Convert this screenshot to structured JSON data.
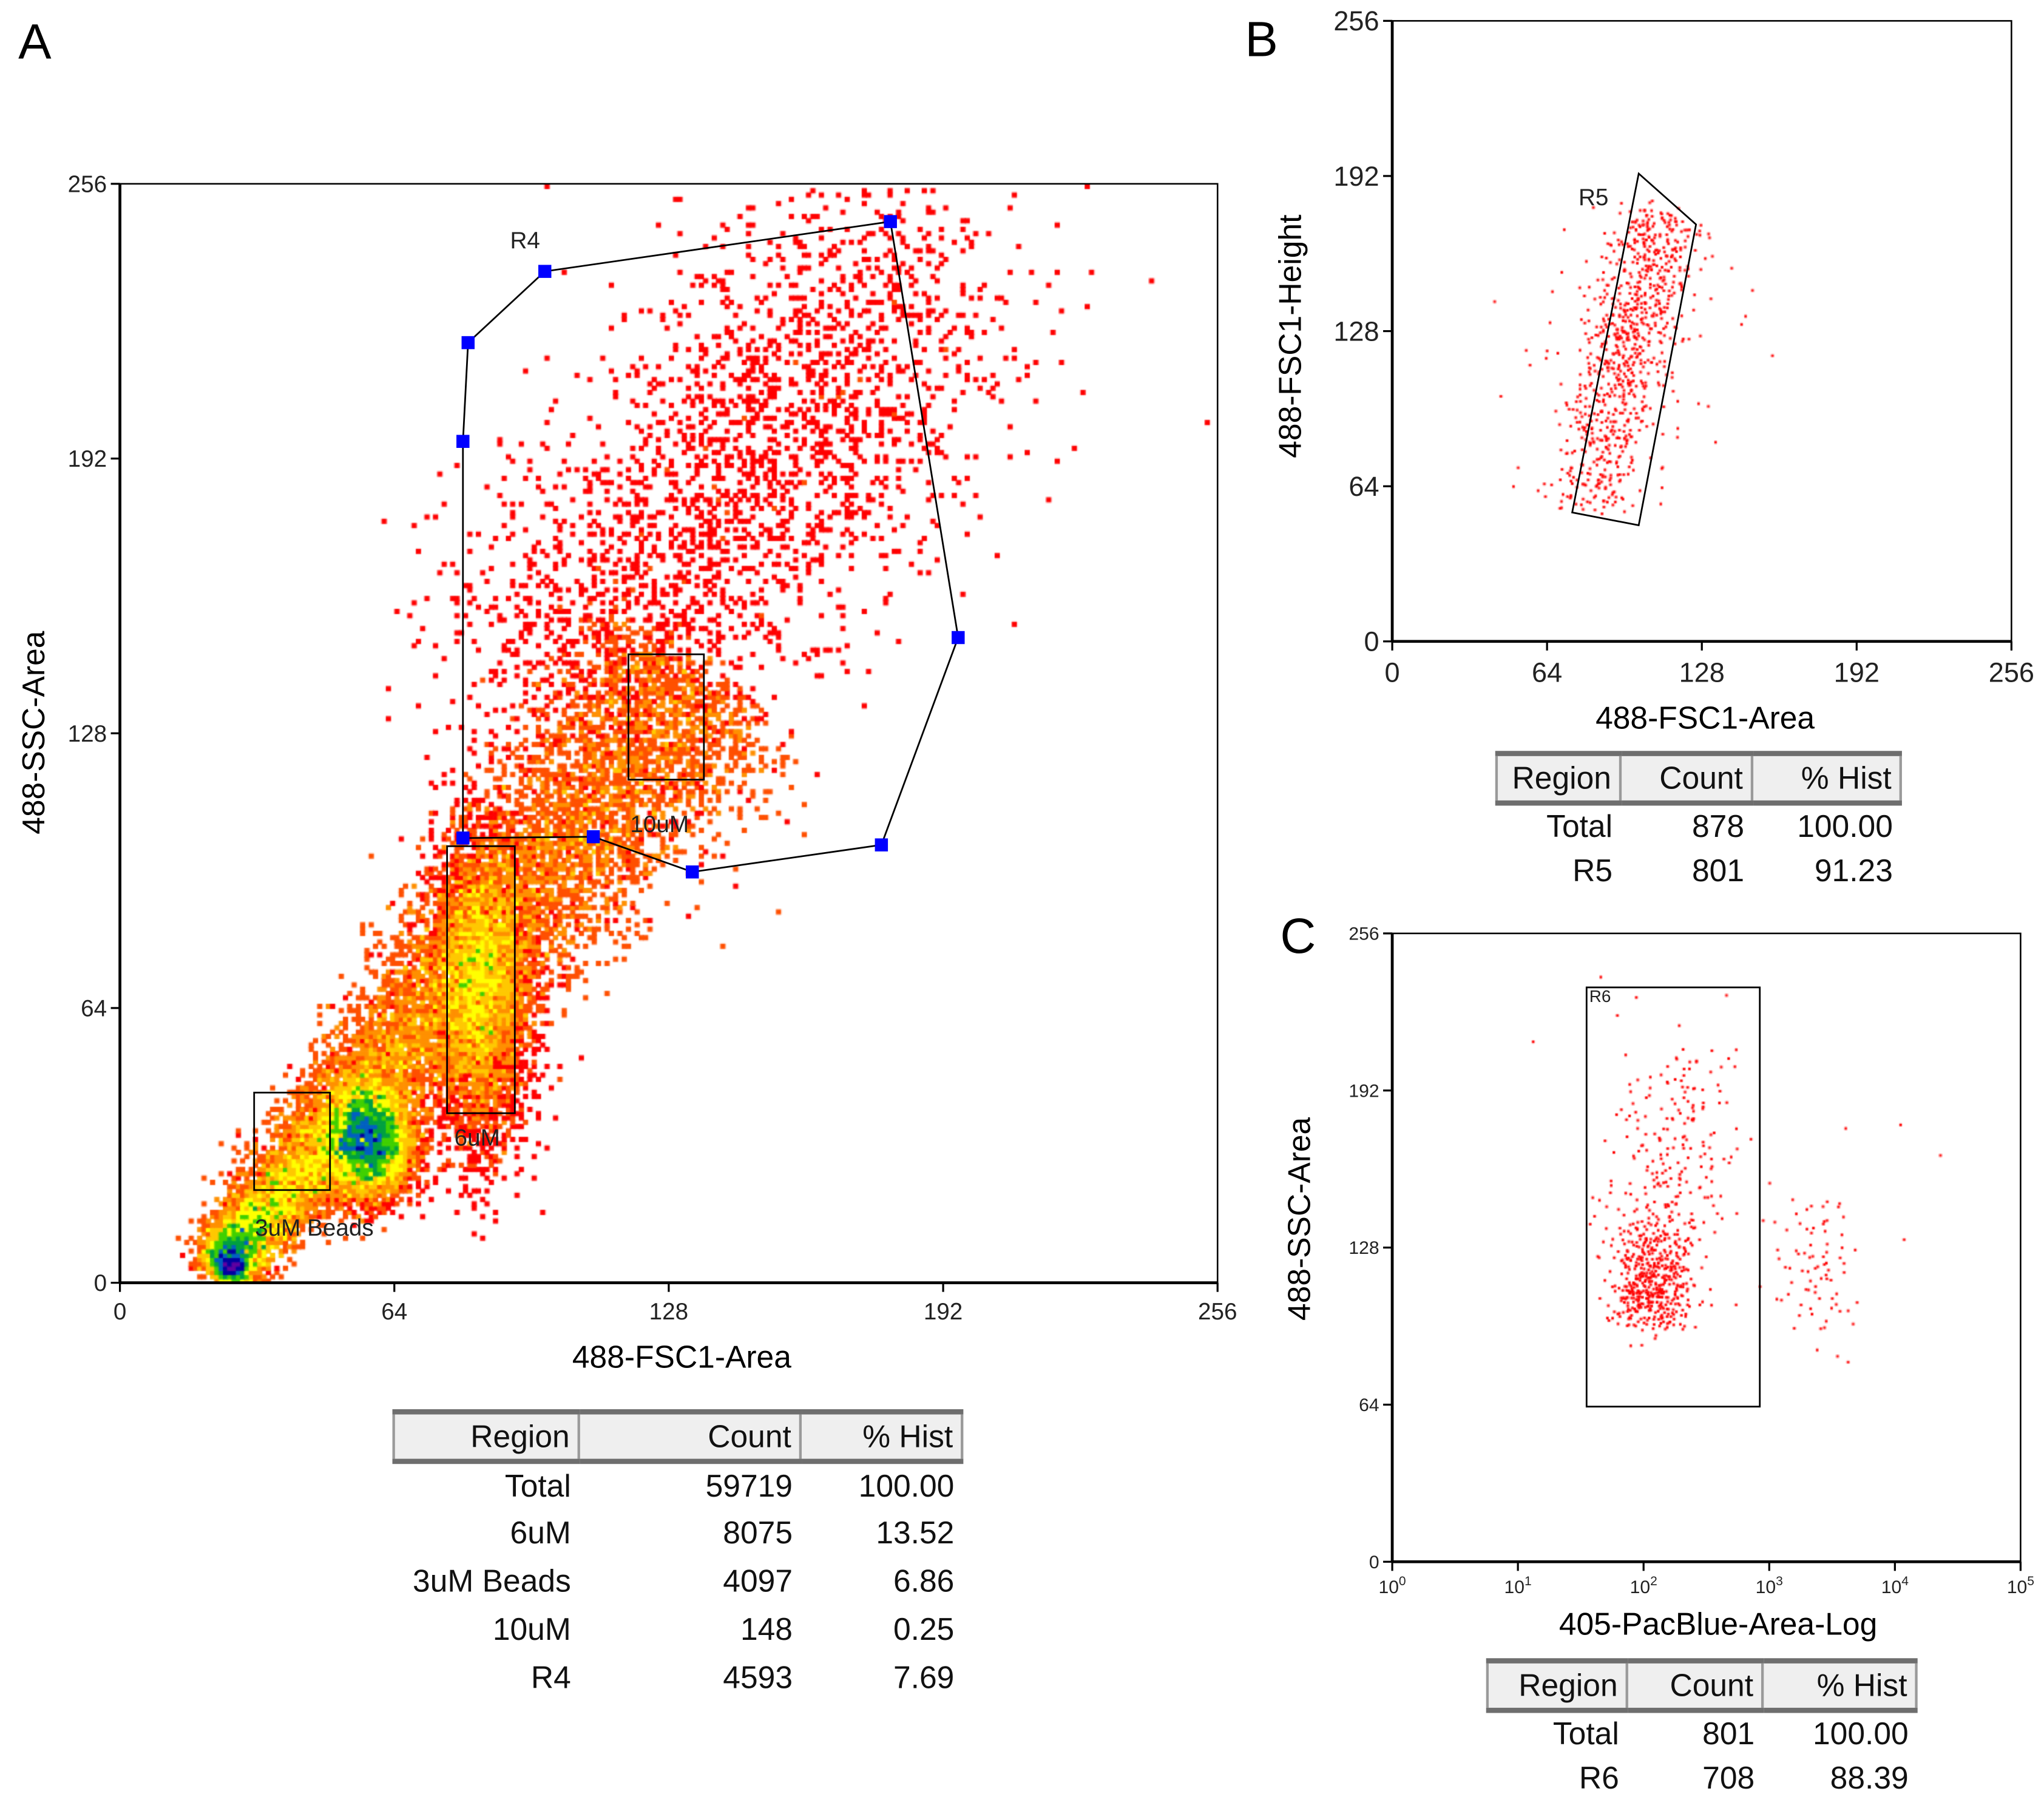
{
  "chart_data": [
    {
      "panel": "A",
      "type": "scatter",
      "subtype": "density-dot-plot",
      "xlabel": "488-FSC1-Area",
      "ylabel": "488-SSC-Area",
      "xlim": [
        0,
        256
      ],
      "ylim": [
        0,
        256
      ],
      "xticks": [
        "0",
        "64",
        "128",
        "192",
        "256"
      ],
      "yticks": [
        "0",
        "64",
        "128",
        "192",
        "256"
      ],
      "xscale": "linear",
      "event_count": 59719,
      "colormap": [
        "#ff0000",
        "#ff5000",
        "#ff9000",
        "#ffc800",
        "#ffff00",
        "#40d000",
        "#00a040",
        "#0060c0",
        "#0000a0",
        "#6000a0"
      ],
      "gates": [
        {
          "name": "R4",
          "shape": "polygon",
          "points": [
            [
              80,
              103.6
            ],
            [
              80,
              196
            ],
            [
              81.2,
              219
            ],
            [
              99.1,
              235.6
            ],
            [
              179.7,
              247.2
            ],
            [
              195.5,
              150.3
            ],
            [
              177.6,
              102
            ],
            [
              133.5,
              95.7
            ],
            [
              110.4,
              103.9
            ]
          ],
          "label_at": [
            91,
            241
          ],
          "handles": true
        },
        {
          "name": "3uM Beads",
          "shape": "rect",
          "x": [
            31.3,
            49
          ],
          "y": [
            21.6,
            44.3
          ],
          "label_at": [
            31.5,
            11
          ]
        },
        {
          "name": "6uM",
          "shape": "rect",
          "x": [
            76.3,
            92.1
          ],
          "y": [
            39.5,
            101.7
          ],
          "label_at": [
            78,
            32
          ]
        },
        {
          "name": "10uM",
          "shape": "rect",
          "x": [
            118.6,
            136.2
          ],
          "y": [
            117.2,
            146.4
          ],
          "label_at": [
            119,
            105
          ]
        }
      ],
      "table": {
        "headers": [
          "Region",
          "Count",
          "% Hist"
        ],
        "rows": [
          [
            "Total",
            "59719",
            "100.00"
          ],
          [
            "6uM",
            "8075",
            "13.52"
          ],
          [
            "3uM Beads",
            "4097",
            "6.86"
          ],
          [
            "10uM",
            "148",
            "0.25"
          ],
          [
            "R4",
            "4593",
            "7.69"
          ]
        ]
      }
    },
    {
      "panel": "B",
      "type": "scatter",
      "xlabel": "488-FSC1-Area",
      "ylabel": "488-FSC1-Height",
      "xlim": [
        0,
        256
      ],
      "ylim": [
        0,
        256
      ],
      "xticks": [
        "0",
        "64",
        "128",
        "192",
        "256"
      ],
      "yticks": [
        "0",
        "64",
        "128",
        "192",
        "256"
      ],
      "xscale": "linear",
      "event_count": 878,
      "point_color": "#ff0000",
      "gates": [
        {
          "name": "R5",
          "shape": "polygon",
          "points": [
            [
              101.9,
              193
            ],
            [
              125.6,
              172
            ],
            [
              101.9,
              47.9
            ],
            [
              74.4,
              53.2
            ]
          ],
          "label_at": [
            77,
            180
          ]
        }
      ],
      "table": {
        "headers": [
          "Region",
          "Count",
          "% Hist"
        ],
        "rows": [
          [
            "Total",
            "878",
            "100.00"
          ],
          [
            "R5",
            "801",
            "91.23"
          ]
        ]
      }
    },
    {
      "panel": "C",
      "type": "scatter",
      "xlabel": "405-PacBlue-Area-Log",
      "ylabel": "488-SSC-Area",
      "xlim": [
        1,
        100000
      ],
      "ylim": [
        0,
        256
      ],
      "xticks": [
        {
          "base": "10",
          "exp": "0"
        },
        {
          "base": "10",
          "exp": "1"
        },
        {
          "base": "10",
          "exp": "2"
        },
        {
          "base": "10",
          "exp": "3"
        },
        {
          "base": "10",
          "exp": "4"
        },
        {
          "base": "10",
          "exp": "5"
        }
      ],
      "yticks": [
        "0",
        "64",
        "128",
        "192",
        "256"
      ],
      "xscale": "log",
      "event_count": 801,
      "point_color": "#ff0000",
      "gates": [
        {
          "name": "R6",
          "shape": "rect",
          "x": [
            35.2,
            841
          ],
          "y": [
            63.2,
            234
          ],
          "label_at": [
            37,
            228
          ]
        }
      ],
      "table": {
        "headers": [
          "Region",
          "Count",
          "% Hist"
        ],
        "rows": [
          [
            "Total",
            "801",
            "100.00"
          ],
          [
            "R6",
            "708",
            "88.39"
          ]
        ]
      }
    }
  ]
}
